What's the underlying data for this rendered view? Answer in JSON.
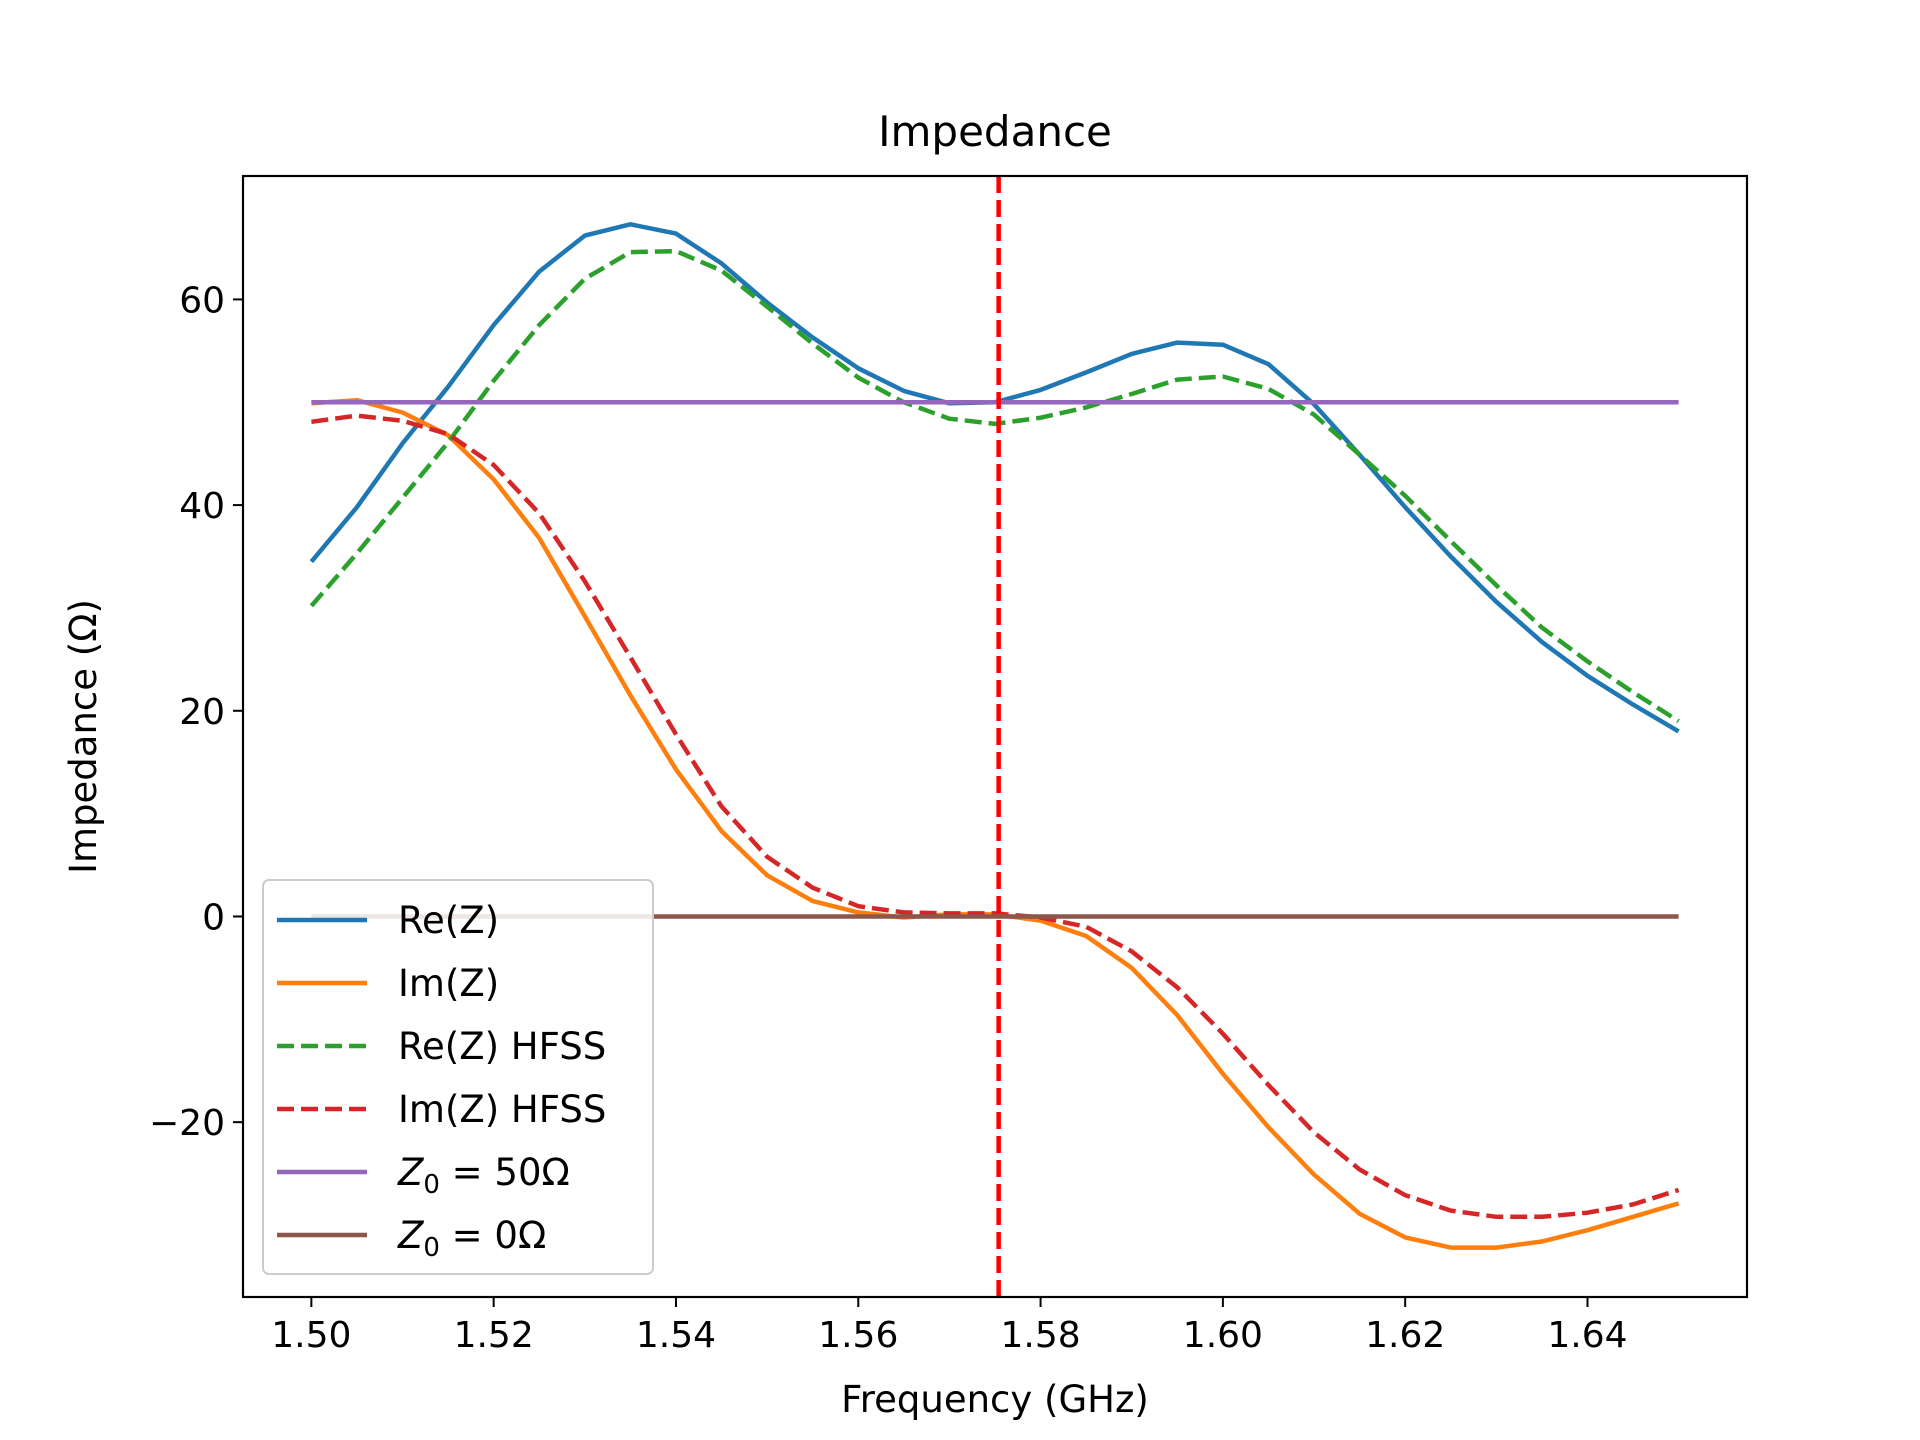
{
  "chart_data": {
    "type": "line",
    "title": "Impedance",
    "xlabel": "Frequency (GHz)",
    "ylabel": "Impedance (Ω)",
    "xlim": [
      1.4925,
      1.6575
    ],
    "ylim": [
      -37,
      72
    ],
    "xticks": [
      1.5,
      1.52,
      1.54,
      1.56,
      1.58,
      1.6,
      1.62,
      1.64
    ],
    "xtick_labels": [
      "1.50",
      "1.52",
      "1.54",
      "1.56",
      "1.58",
      "1.60",
      "1.62",
      "1.64"
    ],
    "yticks": [
      -20,
      0,
      20,
      40,
      60
    ],
    "ytick_labels": [
      "−20",
      "0",
      "20",
      "40",
      "60"
    ],
    "grid": false,
    "legend_position": "lower-left",
    "vline": {
      "x": 1.5754,
      "color": "#ff0000",
      "style": "dashed"
    },
    "x": [
      1.5,
      1.505,
      1.51,
      1.515,
      1.52,
      1.525,
      1.53,
      1.535,
      1.54,
      1.545,
      1.55,
      1.555,
      1.56,
      1.565,
      1.57,
      1.575,
      1.58,
      1.585,
      1.59,
      1.595,
      1.6,
      1.605,
      1.61,
      1.615,
      1.62,
      1.625,
      1.63,
      1.635,
      1.64,
      1.645,
      1.65
    ],
    "series": [
      {
        "name": "Re(Z)",
        "color": "#1f77b4",
        "style": "solid",
        "values": [
          34.5,
          39.8,
          46.0,
          51.5,
          57.5,
          62.7,
          66.2,
          67.3,
          66.4,
          63.5,
          59.7,
          56.3,
          53.3,
          51.1,
          49.9,
          50.0,
          51.2,
          52.9,
          54.7,
          55.8,
          55.6,
          53.7,
          49.8,
          44.9,
          39.8,
          35.0,
          30.6,
          26.7,
          23.4,
          20.6,
          18.0
        ]
      },
      {
        "name": "Im(Z)",
        "color": "#ff7f0e",
        "style": "solid",
        "values": [
          49.9,
          50.2,
          49.0,
          46.8,
          42.5,
          36.8,
          29.2,
          21.5,
          14.3,
          8.3,
          4.0,
          1.5,
          0.4,
          -0.1,
          0.2,
          0.2,
          -0.4,
          -1.9,
          -5.0,
          -9.6,
          -15.3,
          -20.5,
          -25.1,
          -28.9,
          -31.2,
          -32.2,
          -32.2,
          -31.6,
          -30.5,
          -29.2,
          -27.9
        ]
      },
      {
        "name": "Re(Z) HFSS",
        "color": "#2ca02c",
        "style": "dashed",
        "values": [
          30.2,
          35.3,
          40.7,
          46.1,
          52.1,
          57.5,
          62.0,
          64.6,
          64.7,
          62.8,
          59.3,
          55.7,
          52.4,
          50.0,
          48.4,
          47.9,
          48.5,
          49.5,
          50.8,
          52.2,
          52.5,
          51.3,
          48.8,
          44.9,
          40.9,
          36.5,
          32.2,
          28.1,
          24.8,
          21.8,
          19.0
        ]
      },
      {
        "name": "Im(Z) HFSS",
        "color": "#d62728",
        "style": "dashed",
        "values": [
          48.1,
          48.7,
          48.2,
          46.9,
          43.9,
          39.2,
          32.6,
          25.2,
          17.7,
          10.7,
          5.8,
          2.8,
          1.0,
          0.4,
          0.3,
          0.3,
          -0.1,
          -1.0,
          -3.4,
          -6.9,
          -11.4,
          -16.4,
          -21.0,
          -24.6,
          -27.1,
          -28.6,
          -29.2,
          -29.2,
          -28.8,
          -28.0,
          -26.6
        ]
      },
      {
        "name": "$Z_0 = 50\\Omega$",
        "color": "#9467bd",
        "style": "solid",
        "values": [
          50,
          50,
          50,
          50,
          50,
          50,
          50,
          50,
          50,
          50,
          50,
          50,
          50,
          50,
          50,
          50,
          50,
          50,
          50,
          50,
          50,
          50,
          50,
          50,
          50,
          50,
          50,
          50,
          50,
          50,
          50
        ]
      },
      {
        "name": "$Z_0 = 0\\Omega$",
        "color": "#8c564b",
        "style": "solid",
        "values": [
          0,
          0,
          0,
          0,
          0,
          0,
          0,
          0,
          0,
          0,
          0,
          0,
          0,
          0,
          0,
          0,
          0,
          0,
          0,
          0,
          0,
          0,
          0,
          0,
          0,
          0,
          0,
          0,
          0,
          0,
          0
        ]
      }
    ],
    "legend": [
      {
        "main": "Re(Z)"
      },
      {
        "main": "Im(Z)"
      },
      {
        "main": "Re(Z) HFSS"
      },
      {
        "main": "Im(Z) HFSS"
      },
      {
        "main": "Z",
        "sub": "0",
        "rest": " = 50Ω"
      },
      {
        "main": "Z",
        "sub": "0",
        "rest": " = 0Ω"
      }
    ]
  }
}
